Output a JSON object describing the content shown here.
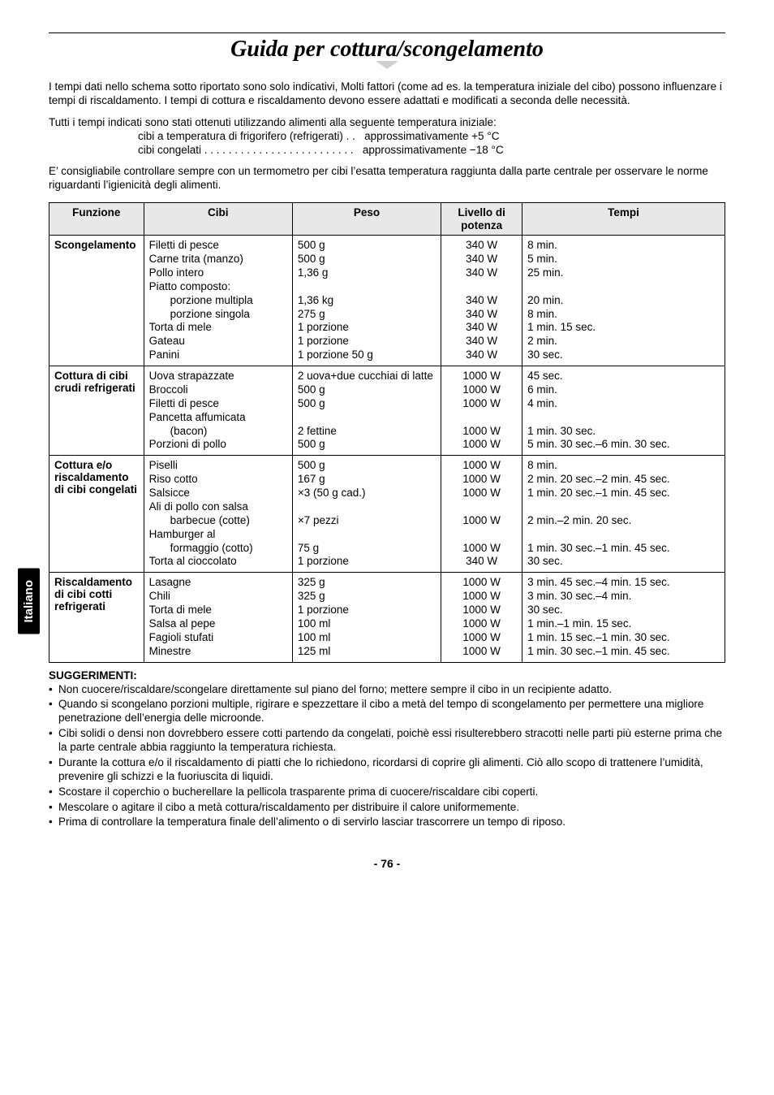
{
  "title": "Guida per cottura/scongelamento",
  "intro": "I tempi dati nello schema sotto riportato sono solo indicativi, Molti fattori (come ad es. la temperatura iniziale del cibo) possono influenzare i tempi di riscaldamento. I tempi di cottura e riscaldamento devono essere adattati e modificati a seconda delle necessità.",
  "temp_lead": "Tutti i tempi indicati sono stati ottenuti utilizzando alimenti alla seguente temperatura iniziale:",
  "temp_line1": "cibi a temperatura di frigorifero (refrigerati) . .   approssimativamente +5 °C",
  "temp_line2": "cibi congelati . . . . . . . . . . . . . . . . . . . . . . . . .   approssimativamente −18 °C",
  "advice": "E’ consigliabile controllare sempre con un termometro per cibi l’esatta temperatura raggiunta dalla parte centrale per osservare le norme riguardanti l’igienicità degli alimenti.",
  "lang_tab": "Italiano",
  "headers": {
    "funzione": "Funzione",
    "cibi": "Cibi",
    "peso": "Peso",
    "livello": "Livello di potenza",
    "tempi": "Tempi"
  },
  "rows": [
    {
      "funzione": "Scongelamento",
      "cibi": [
        "Filetti di pesce",
        "Carne trita (manzo)",
        "Pollo intero",
        "Piatto composto:",
        "  porzione multipla",
        "  porzione singola",
        "Torta di mele",
        "Gateau",
        "Panini"
      ],
      "peso": [
        "500 g",
        "500 g",
        "1,36 g",
        "",
        "1,36 kg",
        "275 g",
        "1 porzione",
        "1 porzione",
        "1 porzione 50 g"
      ],
      "livello": [
        "340 W",
        "340 W",
        "340 W",
        "",
        "340 W",
        "340 W",
        "340 W",
        "340 W",
        "340 W"
      ],
      "tempi": [
        "8 min.",
        "5 min.",
        "25 min.",
        "",
        "20 min.",
        "8 min.",
        "1 min. 15 sec.",
        "2 min.",
        "30 sec."
      ]
    },
    {
      "funzione": "Cottura di cibi crudi refrigerati",
      "cibi": [
        "Uova strapazzate",
        "Broccoli",
        "Filetti di pesce",
        "Pancetta affumicata",
        "  (bacon)",
        "Porzioni di pollo"
      ],
      "peso": [
        "2 uova+due cucchiai di latte",
        "500 g",
        "500 g",
        "",
        "2 fettine",
        "500 g"
      ],
      "livello": [
        "1000 W",
        "1000 W",
        "1000 W",
        "",
        "1000 W",
        "1000 W"
      ],
      "tempi": [
        "45 sec.",
        "6 min.",
        "4 min.",
        "",
        "1 min. 30 sec.",
        "5 min. 30 sec.–6 min. 30 sec."
      ]
    },
    {
      "funzione": "Cottura e/o riscaldamento di cibi congelati",
      "cibi": [
        "Piselli",
        "Riso cotto",
        "Salsicce",
        "Ali di pollo con salsa",
        "  barbecue (cotte)",
        "Hamburger al",
        "  formaggio (cotto)",
        "Torta al cioccolato"
      ],
      "peso": [
        "500 g",
        "167 g",
        "×3 (50 g cad.)",
        "",
        "×7 pezzi",
        "",
        "75 g",
        "1 porzione"
      ],
      "livello": [
        "1000 W",
        "1000 W",
        "1000 W",
        "",
        "1000 W",
        "",
        "1000 W",
        "340 W"
      ],
      "tempi": [
        "8 min.",
        "2 min. 20 sec.–2 min. 45 sec.",
        "1 min. 20 sec.–1 min. 45 sec.",
        "",
        "2 min.–2 min. 20 sec.",
        "",
        "1 min. 30 sec.–1 min. 45 sec.",
        "30 sec."
      ]
    },
    {
      "funzione": "Riscaldamento di cibi cotti refrigerati",
      "cibi": [
        "Lasagne",
        "Chili",
        "Torta di mele",
        "Salsa al pepe",
        "Fagioli stufati",
        "Minestre"
      ],
      "peso": [
        "325 g",
        "325 g",
        "1 porzione",
        "100 ml",
        "100 ml",
        "125 ml"
      ],
      "livello": [
        "1000 W",
        "1000 W",
        "1000 W",
        "1000 W",
        "1000 W",
        "1000 W"
      ],
      "tempi": [
        "3 min. 45 sec.–4 min. 15 sec.",
        "3 min. 30 sec.–4 min.",
        "30 sec.",
        "1 min.–1 min. 15 sec.",
        "1 min. 15 sec.–1 min. 30 sec.",
        "1 min. 30 sec.–1 min. 45 sec."
      ]
    }
  ],
  "hints_title": "SUGGERIMENTI:",
  "hints": [
    "Non cuocere/riscaldare/scongelare direttamente sul piano del forno; mettere sempre il cibo in un recipiente adatto.",
    "Quando si scongelano porzioni multiple, rigirare e spezzettare il cibo a metà del tempo di scongelamento per permettere una migliore penetrazione dell’energia delle microonde.",
    "Cibi solidi o densi non dovrebbero essere cotti partendo da congelati, poichè essi risulterebbero stracotti nelle parti più esterne prima che la parte centrale abbia raggiunto la temperatura richiesta.",
    "Durante la cottura e/o il riscaldamento di piatti che lo richiedono, ricordarsi di coprire gli alimenti. Ciò allo scopo di trattenere l’umidità, prevenire gli schizzi e la fuoriuscita di liquidi.",
    "Scostare il coperchio o bucherellare la pellicola trasparente prima di cuocere/riscaldare cibi coperti.",
    "Mescolare o agitare il cibo a metà cottura/riscaldamento per distribuire il calore uniformemente.",
    "Prima di controllare la temperatura finale dell’alimento o di servirlo lasciar trascorrere un tempo di riposo."
  ],
  "page_number": "- 76 -"
}
